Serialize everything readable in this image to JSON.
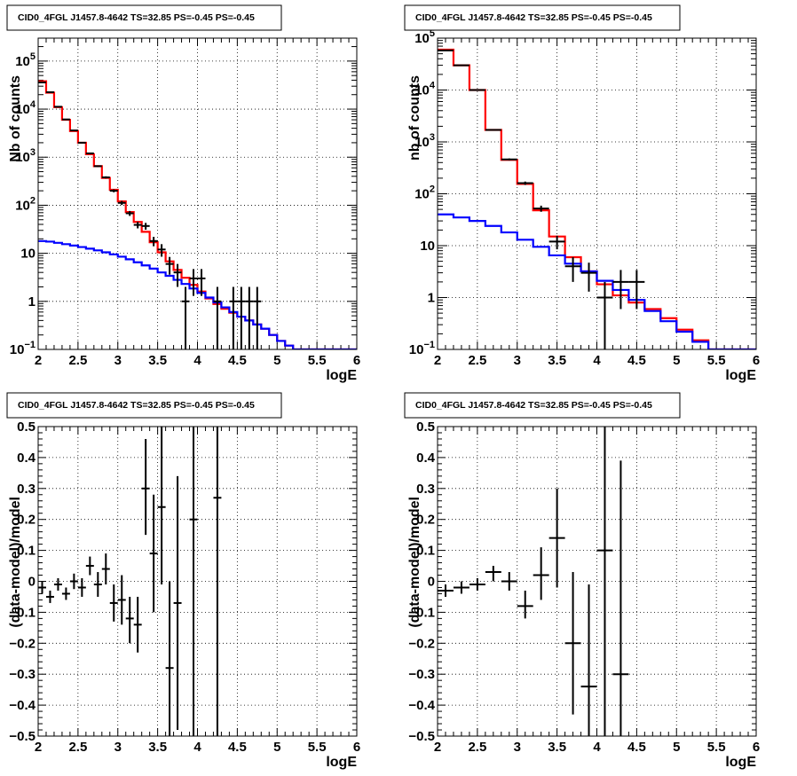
{
  "chart_data": [
    {
      "type": "line",
      "title": "CID0_4FGL J1457.8-4642 TS=32.85 PS=-0.45 PS=-0.45",
      "xlabel": "logE",
      "ylabel": "Nb of counts",
      "xlim": [
        2,
        6
      ],
      "ylim": [
        0.1,
        300000
      ],
      "ylog": true,
      "x_ticks": [
        "2",
        "2.5",
        "3",
        "3.5",
        "4",
        "4.5",
        "5",
        "5.5",
        "6"
      ],
      "y_ticks": [
        {
          "v": 0.1,
          "base": "10",
          "exp": "−1"
        },
        {
          "v": 1,
          "text": "1"
        },
        {
          "v": 10,
          "text": "10"
        },
        {
          "v": 100,
          "base": "10",
          "exp": "2"
        },
        {
          "v": 1000,
          "base": "10",
          "exp": "3"
        },
        {
          "v": 10000,
          "base": "10",
          "exp": "4"
        },
        {
          "v": 100000,
          "base": "10",
          "exp": "5"
        }
      ],
      "grid": true,
      "bin_edges": [
        2.0,
        2.1,
        2.2,
        2.3,
        2.4,
        2.5,
        2.6,
        2.7,
        2.8,
        2.9,
        3.0,
        3.1,
        3.2,
        3.3,
        3.4,
        3.5,
        3.6,
        3.7,
        3.8,
        3.9,
        4.0,
        4.1,
        4.2,
        4.3,
        4.4,
        4.5,
        4.6,
        4.7,
        4.8,
        4.9,
        5.0,
        5.1,
        5.2,
        5.3,
        5.4,
        5.5,
        5.6,
        5.7,
        5.8,
        5.9,
        6.0
      ],
      "series": [
        {
          "color": "#ff0000",
          "values": [
            38000,
            22000,
            11000,
            6000,
            3500,
            2000,
            1150,
            650,
            370,
            210,
            120,
            72,
            45,
            28,
            17,
            10.5,
            6.8,
            4.5,
            3.1,
            2.2,
            1.6,
            1.15,
            0.88,
            0.7,
            0.58,
            0.48,
            0.4,
            0.33,
            0.27,
            0.2,
            0.15,
            0.12,
            0.1,
            0.1,
            0.1,
            0.1,
            0.1,
            0.1,
            0.1,
            0.1
          ]
        },
        {
          "color": "#0000ff",
          "values": [
            18,
            17.5,
            16.5,
            15.5,
            14.5,
            13.5,
            12.5,
            11.5,
            10.5,
            9.5,
            8.5,
            7.5,
            6.5,
            5.6,
            4.8,
            4.0,
            3.4,
            2.8,
            2.3,
            1.85,
            1.5,
            1.2,
            0.95,
            0.75,
            0.6,
            0.48,
            0.4,
            0.33,
            0.27,
            0.2,
            0.15,
            0.12,
            0.1,
            0.1,
            0.1,
            0.1,
            0.1,
            0.1,
            0.1,
            0.1
          ]
        }
      ],
      "points": [
        {
          "x": 2.05,
          "y": 36000,
          "lo": 35700,
          "hi": 36300
        },
        {
          "x": 2.15,
          "y": 22500,
          "lo": 22300,
          "hi": 22700
        },
        {
          "x": 2.25,
          "y": 11200,
          "lo": 11000,
          "hi": 11400
        },
        {
          "x": 2.35,
          "y": 6100,
          "lo": 6000,
          "hi": 6200
        },
        {
          "x": 2.45,
          "y": 3600,
          "lo": 3500,
          "hi": 3700
        },
        {
          "x": 2.55,
          "y": 2000,
          "lo": 1950,
          "hi": 2050
        },
        {
          "x": 2.65,
          "y": 1200,
          "lo": 1160,
          "hi": 1240
        },
        {
          "x": 2.75,
          "y": 650,
          "lo": 625,
          "hi": 675
        },
        {
          "x": 2.85,
          "y": 380,
          "lo": 360,
          "hi": 400
        },
        {
          "x": 2.95,
          "y": 200,
          "lo": 186,
          "hi": 214
        },
        {
          "x": 3.05,
          "y": 112,
          "lo": 101,
          "hi": 123
        },
        {
          "x": 3.15,
          "y": 68,
          "lo": 60,
          "hi": 76
        },
        {
          "x": 3.25,
          "y": 39,
          "lo": 33,
          "hi": 45
        },
        {
          "x": 3.35,
          "y": 37,
          "lo": 31,
          "hi": 43
        },
        {
          "x": 3.45,
          "y": 18,
          "lo": 14,
          "hi": 22
        },
        {
          "x": 3.55,
          "y": 12,
          "lo": 8.5,
          "hi": 15.5
        },
        {
          "x": 3.65,
          "y": 6,
          "lo": 3.6,
          "hi": 8.4
        },
        {
          "x": 3.75,
          "y": 4,
          "lo": 2.0,
          "hi": 6.0
        },
        {
          "x": 3.85,
          "y": 1,
          "lo": 0.1,
          "hi": 2.0
        },
        {
          "x": 3.95,
          "y": 3,
          "lo": 1.3,
          "hi": 4.7
        },
        {
          "x": 4.05,
          "y": 3,
          "lo": 1.3,
          "hi": 4.7
        },
        {
          "x": 4.25,
          "y": 1,
          "lo": 0.1,
          "hi": 2.0
        },
        {
          "x": 4.45,
          "y": 1,
          "lo": 0.1,
          "hi": 2.0
        },
        {
          "x": 4.55,
          "y": 1,
          "lo": 0.1,
          "hi": 2.0
        },
        {
          "x": 4.65,
          "y": 1,
          "lo": 0.1,
          "hi": 2.0
        },
        {
          "x": 4.75,
          "y": 1,
          "lo": 0.1,
          "hi": 2.0
        }
      ]
    },
    {
      "type": "line",
      "title": "CID0_4FGL J1457.8-4642 TS=32.85 PS=-0.45 PS=-0.45",
      "xlabel": "logE",
      "ylabel": "nb of counts",
      "xlim": [
        2,
        6
      ],
      "ylim": [
        0.1,
        100000
      ],
      "ylog": true,
      "x_ticks": [
        "2",
        "2.5",
        "3",
        "3.5",
        "4",
        "4.5",
        "5",
        "5.5",
        "6"
      ],
      "y_ticks": [
        {
          "v": 0.1,
          "base": "10",
          "exp": "−1"
        },
        {
          "v": 1,
          "text": "1"
        },
        {
          "v": 10,
          "text": "10"
        },
        {
          "v": 100,
          "base": "10",
          "exp": "2"
        },
        {
          "v": 1000,
          "base": "10",
          "exp": "3"
        },
        {
          "v": 10000,
          "base": "10",
          "exp": "4"
        },
        {
          "v": 100000,
          "base": "10",
          "exp": "5"
        }
      ],
      "grid": true,
      "bin_edges": [
        2.0,
        2.2,
        2.4,
        2.6,
        2.8,
        3.0,
        3.2,
        3.4,
        3.6,
        3.8,
        4.0,
        4.2,
        4.4,
        4.6,
        4.8,
        5.0,
        5.2,
        5.4,
        5.6,
        5.8,
        6.0
      ],
      "series": [
        {
          "color": "#ff0000",
          "values": [
            60000,
            30000,
            10000,
            1700,
            450,
            155,
            48,
            15,
            6,
            3.2,
            1.8,
            1.1,
            0.8,
            0.6,
            0.4,
            0.24,
            0.15,
            0.1,
            0.1,
            0.1
          ]
        },
        {
          "color": "#0000ff",
          "values": [
            40,
            35,
            30,
            24,
            18,
            13,
            9.5,
            6.5,
            4.5,
            3.2,
            2.1,
            1.4,
            0.9,
            0.55,
            0.35,
            0.22,
            0.14,
            0.1,
            0.1,
            0.1
          ]
        }
      ],
      "points": [
        {
          "x": 2.1,
          "y": 58000,
          "lo": 57500,
          "hi": 58500
        },
        {
          "x": 2.3,
          "y": 30000,
          "lo": 29700,
          "hi": 30300
        },
        {
          "x": 2.5,
          "y": 10000,
          "lo": 9800,
          "hi": 10200
        },
        {
          "x": 2.7,
          "y": 1700,
          "lo": 1650,
          "hi": 1750
        },
        {
          "x": 2.9,
          "y": 460,
          "lo": 440,
          "hi": 480
        },
        {
          "x": 3.1,
          "y": 160,
          "lo": 148,
          "hi": 172
        },
        {
          "x": 3.3,
          "y": 52,
          "lo": 45,
          "hi": 59
        },
        {
          "x": 3.5,
          "y": 12,
          "lo": 8.5,
          "hi": 15.5
        },
        {
          "x": 3.7,
          "y": 4,
          "lo": 2.0,
          "hi": 6.0
        },
        {
          "x": 3.9,
          "y": 3,
          "lo": 1.3,
          "hi": 4.7
        },
        {
          "x": 4.1,
          "y": 1,
          "lo": 0.1,
          "hi": 2.0
        },
        {
          "x": 4.3,
          "y": 2,
          "lo": 0.6,
          "hi": 3.4
        },
        {
          "x": 4.5,
          "y": 2,
          "lo": 0.6,
          "hi": 3.4
        }
      ]
    },
    {
      "type": "scatter",
      "title": "CID0_4FGL J1457.8-4642 TS=32.85 PS=-0.45 PS=-0.45",
      "xlabel": "logE",
      "ylabel": "(data-model)/model",
      "xlim": [
        2,
        6
      ],
      "ylim": [
        -0.5,
        0.5
      ],
      "ylog": false,
      "x_ticks": [
        "2",
        "2.5",
        "3",
        "3.5",
        "4",
        "4.5",
        "5",
        "5.5",
        "6"
      ],
      "y_ticks": [
        "−0.5",
        "−0.4",
        "−0.3",
        "−0.2",
        "−0.1",
        "0",
        "0.1",
        "0.2",
        "0.3",
        "0.4",
        "0.5"
      ],
      "grid": true,
      "xerr": 0.05,
      "points": [
        {
          "x": 2.05,
          "y": -0.02,
          "lo": -0.04,
          "hi": 0.0
        },
        {
          "x": 2.15,
          "y": -0.05,
          "lo": -0.07,
          "hi": -0.03
        },
        {
          "x": 2.25,
          "y": -0.01,
          "lo": -0.03,
          "hi": 0.01
        },
        {
          "x": 2.35,
          "y": -0.04,
          "lo": -0.06,
          "hi": -0.02
        },
        {
          "x": 2.45,
          "y": 0.0,
          "lo": -0.025,
          "hi": 0.025
        },
        {
          "x": 2.55,
          "y": -0.02,
          "lo": -0.05,
          "hi": 0.01
        },
        {
          "x": 2.65,
          "y": 0.05,
          "lo": 0.02,
          "hi": 0.08
        },
        {
          "x": 2.75,
          "y": -0.01,
          "lo": -0.05,
          "hi": 0.03
        },
        {
          "x": 2.85,
          "y": 0.04,
          "lo": -0.01,
          "hi": 0.09
        },
        {
          "x": 2.95,
          "y": -0.07,
          "lo": -0.13,
          "hi": -0.01
        },
        {
          "x": 3.05,
          "y": -0.06,
          "lo": -0.14,
          "hi": 0.02
        },
        {
          "x": 3.15,
          "y": -0.12,
          "lo": -0.2,
          "hi": -0.05
        },
        {
          "x": 3.25,
          "y": -0.14,
          "lo": -0.23,
          "hi": -0.05
        },
        {
          "x": 3.35,
          "y": 0.3,
          "lo": 0.15,
          "hi": 0.46
        },
        {
          "x": 3.45,
          "y": 0.09,
          "lo": -0.1,
          "hi": 0.28
        },
        {
          "x": 3.55,
          "y": 0.24,
          "lo": -0.01,
          "hi": 0.5
        },
        {
          "x": 3.65,
          "y": -0.28,
          "lo": -0.5,
          "hi": 0.0
        },
        {
          "x": 3.75,
          "y": -0.07,
          "lo": -0.48,
          "hi": 0.34
        },
        {
          "x": 3.95,
          "y": 0.2,
          "lo": -0.5,
          "hi": 0.5
        },
        {
          "x": 4.25,
          "y": 0.27,
          "lo": -0.5,
          "hi": 0.5
        }
      ]
    },
    {
      "type": "scatter",
      "title": "CID0_4FGL J1457.8-4642 TS=32.85 PS=-0.45 PS=-0.45",
      "xlabel": "logE",
      "ylabel": "(data-model)/model",
      "xlim": [
        2,
        6
      ],
      "ylim": [
        -0.5,
        0.5
      ],
      "ylog": false,
      "x_ticks": [
        "2",
        "2.5",
        "3",
        "3.5",
        "4",
        "4.5",
        "5",
        "5.5",
        "6"
      ],
      "y_ticks": [
        "−0.5",
        "−0.4",
        "−0.3",
        "−0.2",
        "−0.1",
        "0",
        "0.1",
        "0.2",
        "0.3",
        "0.4",
        "0.5"
      ],
      "grid": true,
      "xerr": 0.1,
      "points": [
        {
          "x": 2.1,
          "y": -0.03,
          "lo": -0.05,
          "hi": -0.01
        },
        {
          "x": 2.3,
          "y": -0.02,
          "lo": -0.04,
          "hi": 0.0
        },
        {
          "x": 2.5,
          "y": -0.01,
          "lo": -0.03,
          "hi": 0.01
        },
        {
          "x": 2.7,
          "y": 0.03,
          "lo": 0.0,
          "hi": 0.05
        },
        {
          "x": 2.9,
          "y": 0.0,
          "lo": -0.03,
          "hi": 0.03
        },
        {
          "x": 3.1,
          "y": -0.08,
          "lo": -0.12,
          "hi": -0.03
        },
        {
          "x": 3.3,
          "y": 0.02,
          "lo": -0.06,
          "hi": 0.11
        },
        {
          "x": 3.5,
          "y": 0.14,
          "lo": -0.02,
          "hi": 0.3
        },
        {
          "x": 3.7,
          "y": -0.2,
          "lo": -0.43,
          "hi": 0.03
        },
        {
          "x": 3.9,
          "y": -0.34,
          "lo": -0.5,
          "hi": -0.01
        },
        {
          "x": 4.1,
          "y": 0.1,
          "lo": -0.5,
          "hi": 0.5
        },
        {
          "x": 4.3,
          "y": -0.3,
          "lo": -0.5,
          "hi": 0.39
        }
      ]
    }
  ]
}
